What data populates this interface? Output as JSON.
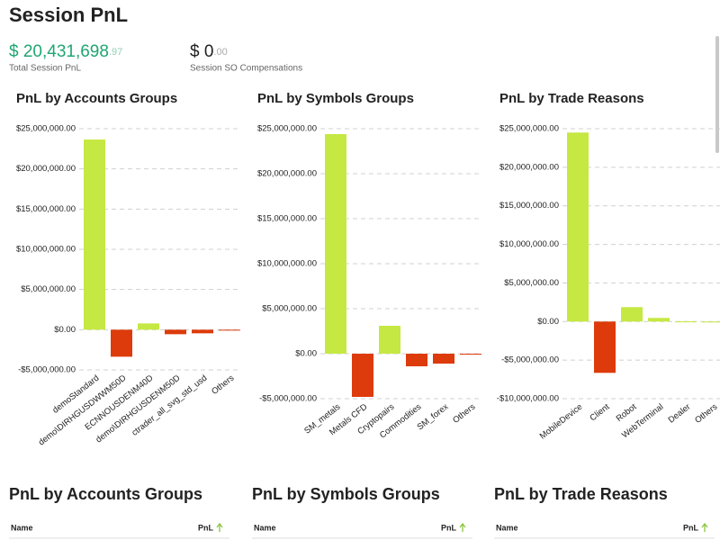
{
  "header": {
    "title": "Session PnL"
  },
  "kpis": [
    {
      "value": "$ 20,431,698",
      "decimals": ".97",
      "label": "Total Session PnL"
    },
    {
      "value": "$ 0",
      "decimals": ".00",
      "label": "Session SO Compensations"
    }
  ],
  "chart_data": [
    {
      "type": "bar",
      "title": "PnL by Accounts Groups",
      "categories": [
        "demoStandard",
        "demo\\DIRHGUSDWWM50D",
        "ECNNOUSDENM40D",
        "demo\\DIRHGUSDENM50D",
        "ctrader_all_svg_std_usd",
        "Others"
      ],
      "values": [
        23650000,
        -3360000,
        780000,
        -560000,
        -450000,
        -100000
      ],
      "positive_color": "#c5e842",
      "negative_color": "#dd3b0b",
      "grid": true,
      "ylim": [
        -5000000,
        25000000
      ],
      "yticks": [
        {
          "value": -5000000,
          "label": "-$5,000,000.00"
        },
        {
          "value": 0,
          "label": "$0.00"
        },
        {
          "value": 5000000,
          "label": "$5,000,000.00"
        },
        {
          "value": 10000000,
          "label": "$10,000,000.00"
        },
        {
          "value": 15000000,
          "label": "$15,000,000.00"
        },
        {
          "value": 20000000,
          "label": "$20,000,000.00"
        },
        {
          "value": 25000000,
          "label": "$25,000,000.00"
        }
      ]
    },
    {
      "type": "bar",
      "title": "PnL by Symbols Groups",
      "categories": [
        "SM_metals",
        "Metals CFD",
        "Cryptopairs",
        "Commodities",
        "SM_forex",
        "Others"
      ],
      "values": [
        24400000,
        -4800000,
        3100000,
        -1400000,
        -1100000,
        -100000
      ],
      "positive_color": "#c5e842",
      "negative_color": "#dd3b0b",
      "grid": true,
      "ylim": [
        -5000000,
        25000000
      ],
      "yticks": [
        {
          "value": -5000000,
          "label": "-$5,000,000.00"
        },
        {
          "value": 0,
          "label": "$0.00"
        },
        {
          "value": 5000000,
          "label": "$5,000,000.00"
        },
        {
          "value": 10000000,
          "label": "$10,000,000.00"
        },
        {
          "value": 15000000,
          "label": "$15,000,000.00"
        },
        {
          "value": 20000000,
          "label": "$20,000,000.00"
        },
        {
          "value": 25000000,
          "label": "$25,000,000.00"
        }
      ]
    },
    {
      "type": "bar",
      "title": "PnL by Trade Reasons",
      "categories": [
        "MobileDevice",
        "Client",
        "Robot",
        "WebTerminal",
        "Dealer",
        "Others"
      ],
      "values": [
        24500000,
        -6650000,
        1870000,
        470000,
        20000,
        0
      ],
      "positive_color": "#c5e842",
      "negative_color": "#dd3b0b",
      "grid": true,
      "ylim": [
        -10000000,
        25000000
      ],
      "yticks": [
        {
          "value": -10000000,
          "label": "-$10,000,000.00"
        },
        {
          "value": -5000000,
          "label": "-$5,000,000.00"
        },
        {
          "value": 0,
          "label": "$0.00"
        },
        {
          "value": 5000000,
          "label": "$5,000,000.00"
        },
        {
          "value": 10000000,
          "label": "$10,000,000.00"
        },
        {
          "value": 15000000,
          "label": "$15,000,000.00"
        },
        {
          "value": 20000000,
          "label": "$20,000,000.00"
        },
        {
          "value": 25000000,
          "label": "$25,000,000.00"
        }
      ]
    }
  ],
  "tables": [
    {
      "title": "PnL by Accounts Groups",
      "columns": [
        "Name",
        "PnL"
      ]
    },
    {
      "title": "PnL by Symbols Groups",
      "columns": [
        "Name",
        "PnL"
      ]
    },
    {
      "title": "PnL by Trade Reasons",
      "columns": [
        "Name",
        "PnL"
      ]
    }
  ]
}
